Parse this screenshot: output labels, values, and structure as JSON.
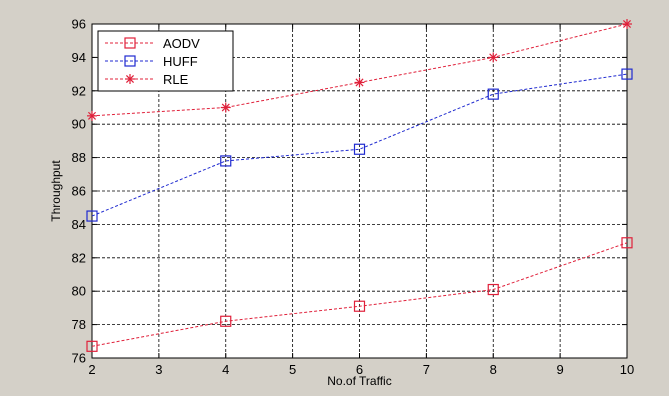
{
  "chart_data": {
    "type": "line",
    "title": "",
    "xlabel": "No.of Traffic",
    "ylabel": "Throughput",
    "x": [
      2,
      4,
      6,
      8,
      10
    ],
    "xlim": [
      2,
      10
    ],
    "ylim": [
      76,
      96
    ],
    "xticks": [
      2,
      3,
      4,
      5,
      6,
      7,
      8,
      9,
      10
    ],
    "yticks": [
      76,
      78,
      80,
      82,
      84,
      86,
      88,
      90,
      92,
      94,
      96
    ],
    "grid": true,
    "legend_position": "top-left",
    "series": [
      {
        "name": "AODV",
        "values": [
          76.7,
          78.2,
          79.1,
          80.1,
          82.9
        ],
        "color": "#e0203a",
        "marker": "square"
      },
      {
        "name": "HUFF",
        "values": [
          84.5,
          87.8,
          88.5,
          91.8,
          93.0
        ],
        "color": "#1f2ad0",
        "marker": "square"
      },
      {
        "name": "RLE",
        "values": [
          90.5,
          91.0,
          92.5,
          94.0,
          96.0
        ],
        "color": "#e0203a",
        "marker": "star"
      }
    ]
  }
}
